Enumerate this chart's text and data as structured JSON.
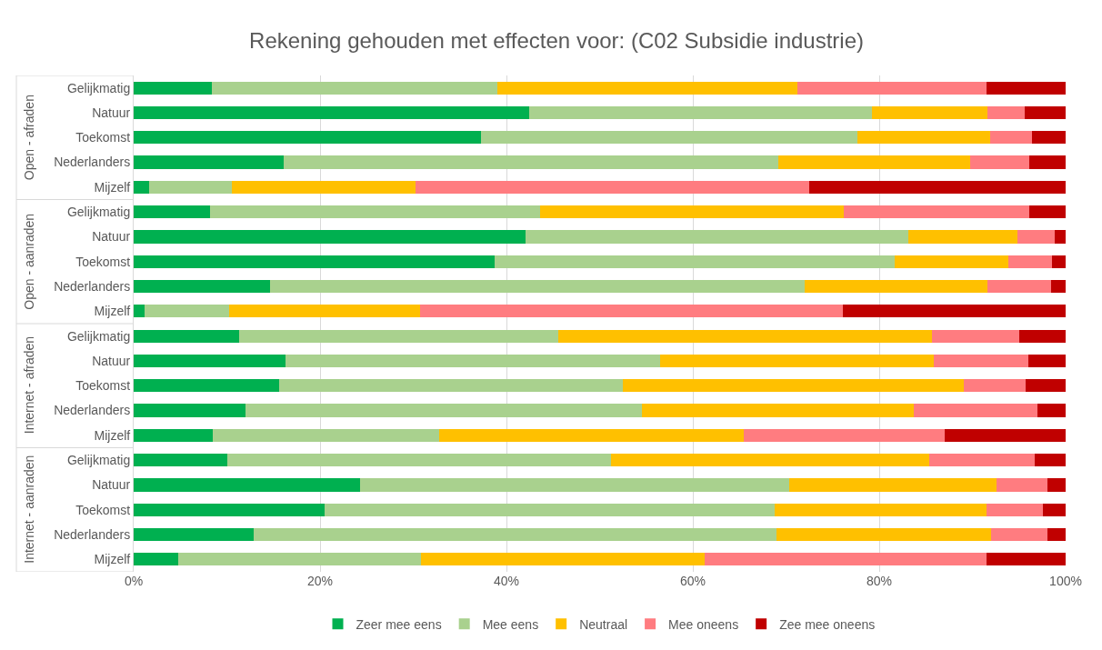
{
  "chart_data": {
    "type": "bar",
    "orientation": "horizontal",
    "stacked": true,
    "title": "Rekening gehouden met effecten voor: (C02 Subsidie industrie)",
    "categories": [
      "Gelijkmatig",
      "Natuur",
      "Toekomst",
      "Nederlanders",
      "Mijzelf",
      "Gelijkmatig",
      "Natuur",
      "Toekomst",
      "Nederlanders",
      "Mijzelf",
      "Gelijkmatig",
      "Natuur",
      "Toekomst",
      "Nederlanders",
      "Mijzelf",
      "Gelijkmatig",
      "Natuur",
      "Toekomst",
      "Nederlanders",
      "Mijzelf"
    ],
    "annotations": [
      "Open - afraden",
      "Open - aanraden",
      "Internet - afraden",
      "Internet - aanraden"
    ],
    "series": [
      {
        "name": "Zeer mee eens",
        "color": "#00b050",
        "values": [
          8.4,
          42.4,
          37.3,
          16.1,
          1.7,
          8.2,
          42.0,
          38.7,
          14.6,
          1.2,
          11.3,
          16.3,
          15.6,
          12.0,
          8.5,
          10.0,
          24.3,
          20.5,
          12.9,
          4.8
        ]
      },
      {
        "name": "Mee eens",
        "color": "#a9d18e",
        "values": [
          30.6,
          36.8,
          40.4,
          53.1,
          8.8,
          35.4,
          41.1,
          43.0,
          57.4,
          9.0,
          34.3,
          40.2,
          36.9,
          42.5,
          24.3,
          41.2,
          46.0,
          48.3,
          56.1,
          26.0
        ]
      },
      {
        "name": "Neutraal",
        "color": "#ffc000",
        "values": [
          32.2,
          12.4,
          14.2,
          20.6,
          19.7,
          32.6,
          11.7,
          12.2,
          19.6,
          20.5,
          40.1,
          29.4,
          36.6,
          29.2,
          32.7,
          34.2,
          22.3,
          22.7,
          23.0,
          30.5
        ]
      },
      {
        "name": "Mee oneens",
        "color": "#ff7c80",
        "values": [
          20.3,
          4.0,
          4.5,
          6.3,
          42.3,
          19.9,
          4.0,
          4.6,
          6.8,
          45.4,
          9.3,
          10.1,
          6.6,
          13.3,
          21.5,
          11.3,
          5.4,
          6.1,
          6.0,
          30.2
        ]
      },
      {
        "name": "Zee mee oneens",
        "color": "#c00000",
        "values": [
          8.5,
          4.4,
          3.6,
          3.9,
          27.5,
          3.9,
          1.2,
          1.5,
          1.6,
          23.9,
          5.0,
          4.0,
          4.3,
          3.0,
          13.0,
          3.3,
          2.0,
          2.4,
          2.0,
          8.5
        ]
      }
    ],
    "xlim": [
      0,
      100
    ],
    "xticks": [
      {
        "value": 0,
        "label": "0%"
      },
      {
        "value": 20,
        "label": "20%"
      },
      {
        "value": 40,
        "label": "40%"
      },
      {
        "value": 60,
        "label": "60%"
      },
      {
        "value": 80,
        "label": "80%"
      },
      {
        "value": 100,
        "label": "100%"
      }
    ],
    "grid": "x",
    "legend": "bottom"
  }
}
